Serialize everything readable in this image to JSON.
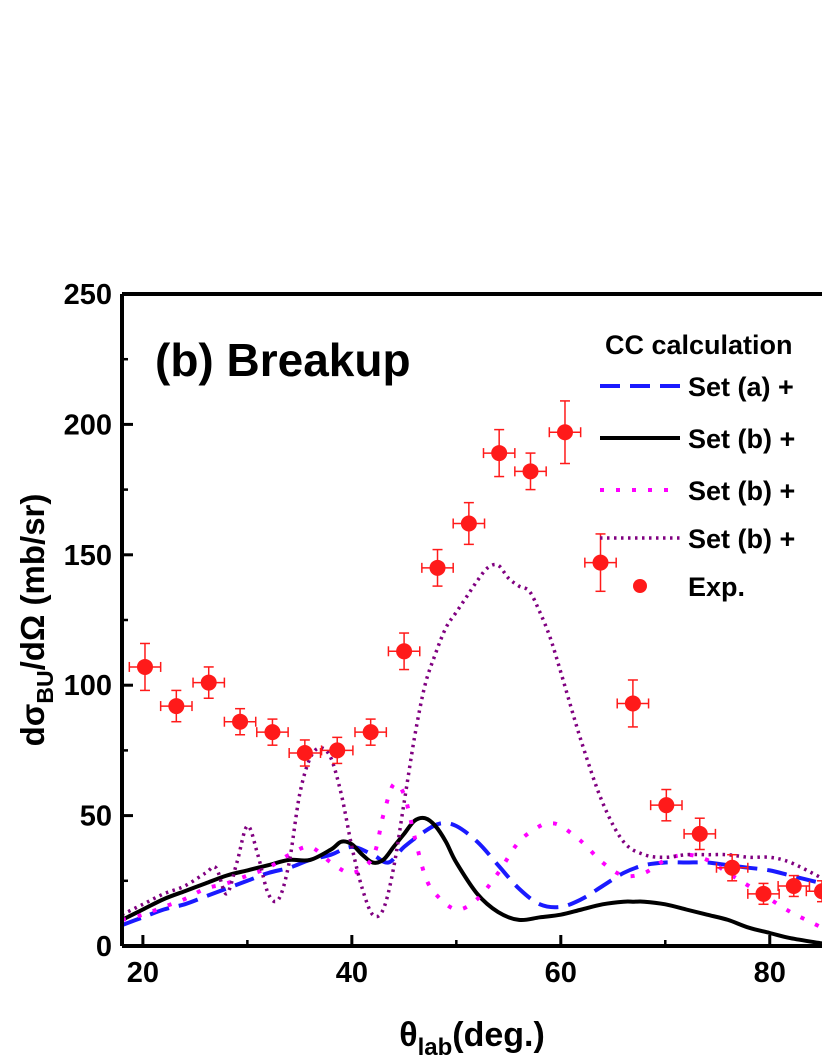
{
  "chart_data": {
    "type": "line",
    "panel_label": "(b) Breakup",
    "xlabel": {
      "main": "θ",
      "sub": "lab",
      "rest": "(deg.)"
    },
    "ylabel": {
      "pre": "dσ",
      "sub": "BU",
      "rest": "/dΩ (mb/sr)"
    },
    "xlim": [
      18,
      85
    ],
    "ylim": [
      0,
      250
    ],
    "xticks": [
      20,
      40,
      60,
      80
    ],
    "yticks": [
      0,
      50,
      100,
      150,
      200,
      250
    ],
    "grid": false,
    "legend": {
      "placement": "top-right",
      "title": "CC calculation",
      "entries": [
        "Set (a) +",
        "Set (b) +",
        "Set (b) +",
        "Set (b) +",
        "Exp."
      ]
    },
    "series": [
      {
        "name": "Set (a) +",
        "style": "dashed",
        "color": "#1a1aff",
        "x": [
          18,
          20,
          22,
          24,
          26,
          28,
          30,
          32,
          34,
          36,
          38,
          40,
          42,
          43.5,
          45,
          47,
          48.5,
          50,
          52,
          54,
          56,
          58,
          60,
          62,
          64,
          66,
          68,
          70,
          72,
          74,
          76,
          78,
          80,
          82,
          85
        ],
        "y": [
          8,
          11,
          14,
          16,
          19,
          22,
          25,
          28,
          30,
          33,
          35,
          38,
          35,
          32,
          38,
          44,
          47,
          46,
          40,
          31,
          22,
          16,
          15,
          18,
          23,
          28,
          31,
          32,
          32,
          32,
          31,
          30,
          29,
          27,
          24
        ]
      },
      {
        "name": "Set (b) +",
        "style": "solid",
        "color": "#000000",
        "x": [
          18,
          20,
          22,
          24,
          26,
          28,
          30,
          32,
          34,
          36,
          38,
          39,
          40,
          41,
          42,
          43,
          44,
          45,
          46,
          47,
          48,
          49,
          50,
          52,
          54,
          56,
          58,
          60,
          62,
          64,
          66,
          67,
          68,
          70,
          72,
          74,
          76,
          78,
          80,
          82,
          85
        ],
        "y": [
          10,
          14,
          18,
          21,
          24,
          27,
          29,
          31,
          33,
          33,
          37,
          40,
          39,
          35,
          32,
          33,
          38,
          43,
          48,
          49,
          46,
          40,
          32,
          20,
          13,
          10,
          11,
          12,
          14,
          16,
          17,
          17,
          17,
          16,
          14,
          12,
          10,
          7,
          5,
          3,
          1
        ]
      },
      {
        "name": "Set (b) +",
        "style": "dotted",
        "color": "#ff00ff",
        "x": [
          18,
          20,
          22,
          24,
          26,
          28,
          30,
          32,
          34,
          36,
          38,
          40,
          42,
          43,
          44,
          45,
          46,
          47,
          48,
          50,
          52,
          54,
          56,
          58,
          59,
          60,
          62,
          64,
          66,
          68,
          70,
          72,
          74,
          76,
          78,
          80,
          82,
          84,
          85
        ],
        "y": [
          10,
          12,
          15,
          18,
          22,
          24,
          27,
          30,
          35,
          38,
          32,
          28,
          34,
          50,
          62,
          58,
          42,
          27,
          20,
          14,
          18,
          28,
          40,
          46,
          47,
          46,
          40,
          32,
          27,
          28,
          33,
          35,
          33,
          28,
          23,
          18,
          13,
          9,
          7
        ]
      },
      {
        "name": "Set (b) +",
        "style": "dense-dot",
        "color": "#800080",
        "x": [
          18,
          20,
          22,
          24,
          26,
          27,
          28,
          29,
          30,
          31,
          32,
          33,
          34,
          35,
          36,
          37,
          38,
          39,
          40,
          41,
          42,
          43,
          44,
          45,
          46,
          47,
          48,
          49,
          50,
          51,
          52,
          53,
          54,
          55,
          56,
          57,
          58,
          59,
          60,
          62,
          64,
          66,
          68,
          70,
          72,
          74,
          76,
          78,
          80,
          82,
          85
        ],
        "y": [
          12,
          16,
          20,
          23,
          28,
          30,
          20,
          32,
          46,
          35,
          20,
          18,
          32,
          58,
          72,
          76,
          72,
          58,
          38,
          22,
          12,
          14,
          30,
          55,
          80,
          100,
          112,
          122,
          128,
          134,
          140,
          145,
          146,
          141,
          138,
          136,
          128,
          118,
          105,
          78,
          55,
          40,
          35,
          34,
          35,
          35,
          35,
          34,
          34,
          32,
          26
        ]
      }
    ],
    "experimental": {
      "name": "Exp.",
      "color": "#ff1a1a",
      "points": [
        {
          "x": 20.2,
          "y": 107,
          "xerr": 1.5,
          "yerr": 9
        },
        {
          "x": 23.2,
          "y": 92,
          "xerr": 1.5,
          "yerr": 6
        },
        {
          "x": 26.3,
          "y": 101,
          "xerr": 1.5,
          "yerr": 6
        },
        {
          "x": 29.3,
          "y": 86,
          "xerr": 1.5,
          "yerr": 5
        },
        {
          "x": 32.4,
          "y": 82,
          "xerr": 1.5,
          "yerr": 5
        },
        {
          "x": 35.5,
          "y": 74,
          "xerr": 1.5,
          "yerr": 5
        },
        {
          "x": 38.6,
          "y": 75,
          "xerr": 1.5,
          "yerr": 5
        },
        {
          "x": 41.8,
          "y": 82,
          "xerr": 1.5,
          "yerr": 5
        },
        {
          "x": 45.0,
          "y": 113,
          "xerr": 1.5,
          "yerr": 7
        },
        {
          "x": 48.2,
          "y": 145,
          "xerr": 1.5,
          "yerr": 7
        },
        {
          "x": 51.2,
          "y": 162,
          "xerr": 1.5,
          "yerr": 8
        },
        {
          "x": 54.1,
          "y": 189,
          "xerr": 1.5,
          "yerr": 9
        },
        {
          "x": 57.1,
          "y": 182,
          "xerr": 1.5,
          "yerr": 7
        },
        {
          "x": 60.4,
          "y": 197,
          "xerr": 1.5,
          "yerr": 12
        },
        {
          "x": 63.8,
          "y": 147,
          "xerr": 1.5,
          "yerr": 11
        },
        {
          "x": 66.9,
          "y": 93,
          "xerr": 1.5,
          "yerr": 9
        },
        {
          "x": 70.1,
          "y": 54,
          "xerr": 1.5,
          "yerr": 6
        },
        {
          "x": 73.3,
          "y": 43,
          "xerr": 1.5,
          "yerr": 6
        },
        {
          "x": 76.4,
          "y": 30,
          "xerr": 1.5,
          "yerr": 5
        },
        {
          "x": 79.4,
          "y": 20,
          "xerr": 1.5,
          "yerr": 4
        },
        {
          "x": 82.3,
          "y": 23,
          "xerr": 1.5,
          "yerr": 4
        },
        {
          "x": 85.0,
          "y": 21,
          "xerr": 1.5,
          "yerr": 4
        }
      ]
    }
  }
}
